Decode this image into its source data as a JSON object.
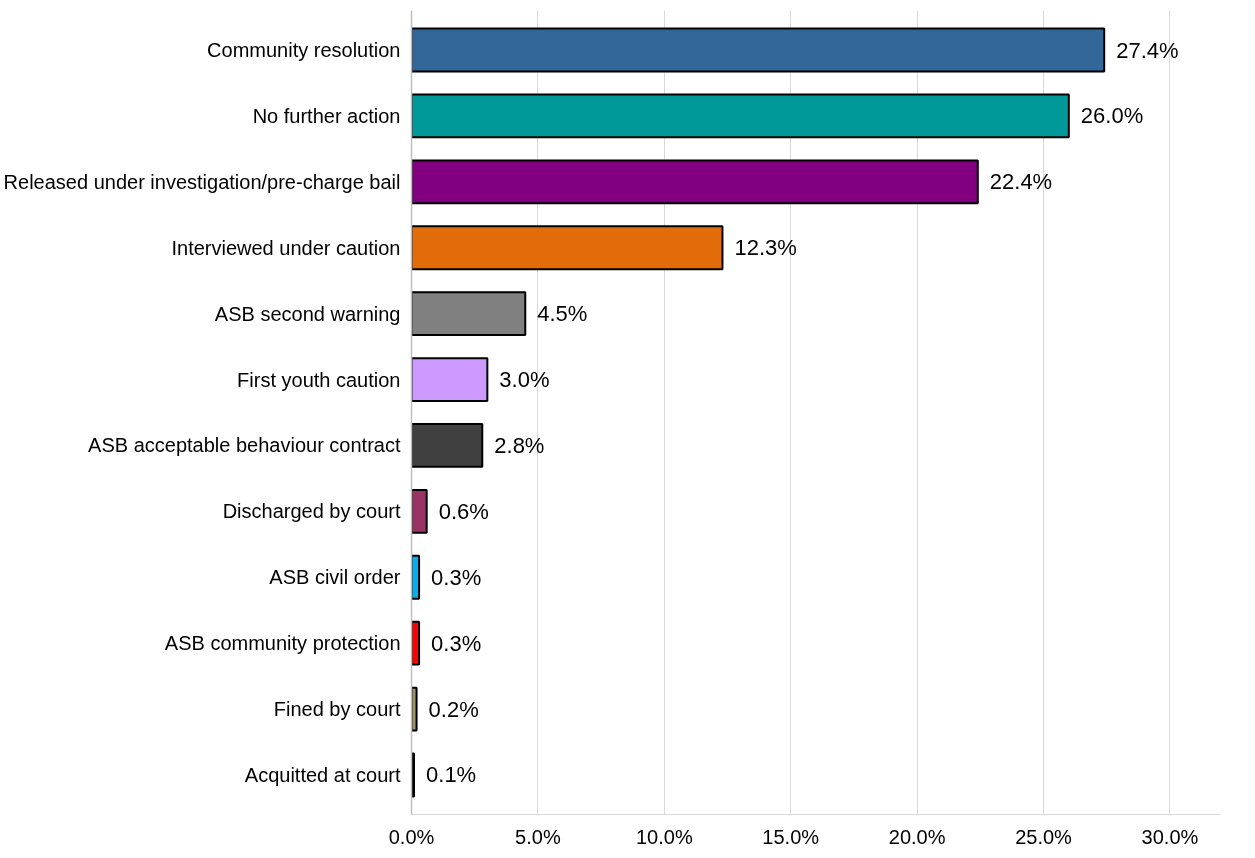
{
  "chart_data": {
    "type": "bar",
    "orientation": "horizontal",
    "categories": [
      "Community resolution",
      "No further action",
      "Released under investigation/pre-charge bail",
      "Interviewed under caution",
      "ASB second warning",
      "First youth caution",
      "ASB acceptable behaviour contract",
      "Discharged by court",
      "ASB civil order",
      "ASB community protection",
      "Fined by court",
      "Acquitted at court"
    ],
    "values": [
      27.4,
      26.0,
      22.4,
      12.3,
      4.5,
      3.0,
      2.8,
      0.6,
      0.3,
      0.3,
      0.2,
      0.1
    ],
    "colors": [
      "#336699",
      "#009999",
      "#800080",
      "#e36c0a",
      "#808080",
      "#cc99ff",
      "#404040",
      "#993366",
      "#00b0f0",
      "#ff0000",
      "#9c9366",
      "#000000"
    ],
    "value_labels": [
      "27.4%",
      "26.0%",
      "22.4%",
      "12.3%",
      "4.5%",
      "3.0%",
      "2.8%",
      "0.6%",
      "0.3%",
      "0.3%",
      "0.2%",
      "0.1%"
    ],
    "xlim": [
      0,
      32
    ],
    "xticks": [
      {
        "value": 0,
        "label": "0.0%"
      },
      {
        "value": 5,
        "label": "5.0%"
      },
      {
        "value": 10,
        "label": "10.0%"
      },
      {
        "value": 15,
        "label": "15.0%"
      },
      {
        "value": 20,
        "label": "20.0%"
      },
      {
        "value": 25,
        "label": "25.0%"
      },
      {
        "value": 30,
        "label": "30.0%"
      }
    ],
    "grid": "x"
  }
}
